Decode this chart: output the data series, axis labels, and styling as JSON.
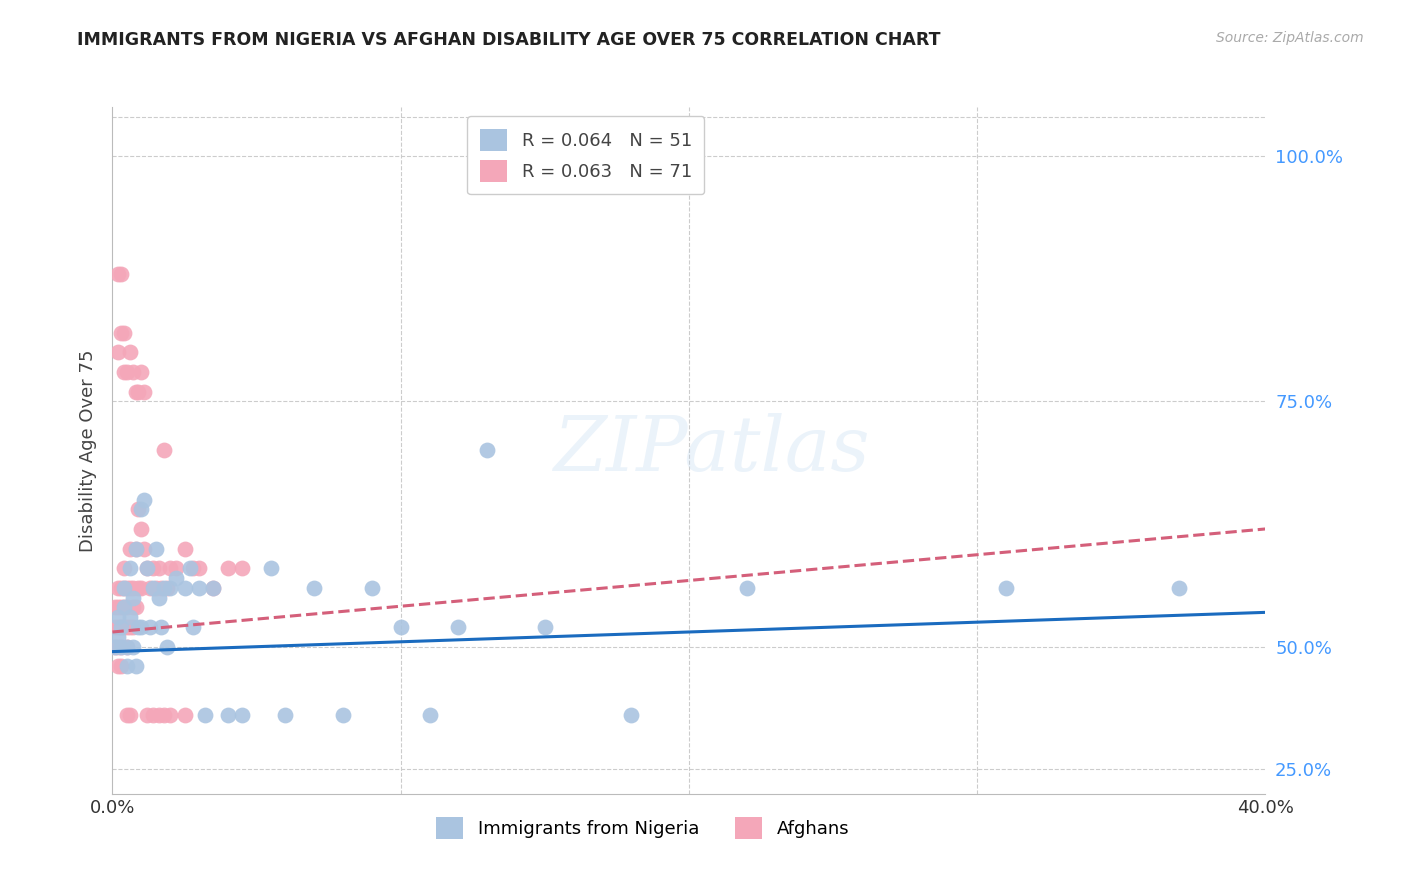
{
  "title": "IMMIGRANTS FROM NIGERIA VS AFGHAN DISABILITY AGE OVER 75 CORRELATION CHART",
  "source": "Source: ZipAtlas.com",
  "ylabel": "Disability Age Over 75",
  "nigeria_R": "0.064",
  "nigeria_N": "51",
  "afghan_R": "0.063",
  "afghan_N": "71",
  "nigeria_color": "#aac4e0",
  "afghan_color": "#f4a7b9",
  "nigeria_line_color": "#1a6bbf",
  "afghan_line_color": "#d45f7a",
  "legend_label_nigeria": "Immigrants from Nigeria",
  "legend_label_afghan": "Afghans",
  "watermark": "ZIPatlas",
  "background_color": "#ffffff",
  "grid_color": "#cccccc",
  "xlim": [
    0.0,
    0.4
  ],
  "ylim": [
    0.35,
    1.05
  ],
  "nigeria_x": [
    0.001,
    0.002,
    0.002,
    0.003,
    0.003,
    0.004,
    0.004,
    0.005,
    0.005,
    0.006,
    0.006,
    0.007,
    0.007,
    0.008,
    0.008,
    0.009,
    0.01,
    0.01,
    0.011,
    0.012,
    0.013,
    0.014,
    0.015,
    0.016,
    0.017,
    0.018,
    0.019,
    0.02,
    0.022,
    0.025,
    0.027,
    0.028,
    0.03,
    0.032,
    0.035,
    0.04,
    0.045,
    0.055,
    0.06,
    0.07,
    0.08,
    0.09,
    0.1,
    0.11,
    0.12,
    0.13,
    0.15,
    0.18,
    0.22,
    0.31,
    0.37
  ],
  "nigeria_y": [
    0.5,
    0.51,
    0.53,
    0.52,
    0.5,
    0.54,
    0.56,
    0.5,
    0.48,
    0.58,
    0.53,
    0.55,
    0.5,
    0.6,
    0.48,
    0.52,
    0.64,
    0.52,
    0.65,
    0.58,
    0.52,
    0.56,
    0.6,
    0.55,
    0.52,
    0.56,
    0.5,
    0.56,
    0.57,
    0.56,
    0.58,
    0.52,
    0.56,
    0.43,
    0.56,
    0.43,
    0.43,
    0.58,
    0.43,
    0.56,
    0.43,
    0.56,
    0.52,
    0.43,
    0.52,
    0.7,
    0.52,
    0.43,
    0.56,
    0.56,
    0.56
  ],
  "afghan_x": [
    0.001,
    0.001,
    0.001,
    0.002,
    0.002,
    0.002,
    0.002,
    0.002,
    0.003,
    0.003,
    0.003,
    0.003,
    0.003,
    0.004,
    0.004,
    0.004,
    0.004,
    0.005,
    0.005,
    0.005,
    0.005,
    0.006,
    0.006,
    0.006,
    0.007,
    0.007,
    0.007,
    0.008,
    0.008,
    0.009,
    0.009,
    0.01,
    0.01,
    0.011,
    0.012,
    0.013,
    0.014,
    0.015,
    0.016,
    0.017,
    0.018,
    0.019,
    0.02,
    0.022,
    0.025,
    0.028,
    0.03,
    0.035,
    0.04,
    0.045,
    0.002,
    0.003,
    0.004,
    0.005,
    0.006,
    0.007,
    0.008,
    0.009,
    0.01,
    0.011,
    0.012,
    0.014,
    0.016,
    0.018,
    0.02,
    0.025,
    0.002,
    0.003,
    0.004,
    0.005,
    0.006
  ],
  "afghan_y": [
    0.5,
    0.52,
    0.54,
    0.5,
    0.52,
    0.54,
    0.56,
    0.48,
    0.52,
    0.54,
    0.56,
    0.5,
    0.48,
    0.52,
    0.56,
    0.54,
    0.58,
    0.52,
    0.54,
    0.5,
    0.56,
    0.52,
    0.56,
    0.6,
    0.54,
    0.56,
    0.52,
    0.6,
    0.54,
    0.64,
    0.56,
    0.62,
    0.56,
    0.6,
    0.58,
    0.56,
    0.58,
    0.56,
    0.58,
    0.56,
    0.7,
    0.56,
    0.58,
    0.58,
    0.6,
    0.58,
    0.58,
    0.56,
    0.58,
    0.58,
    0.8,
    0.82,
    0.78,
    0.78,
    0.8,
    0.78,
    0.76,
    0.76,
    0.78,
    0.76,
    0.43,
    0.43,
    0.43,
    0.43,
    0.43,
    0.43,
    0.88,
    0.88,
    0.82,
    0.43,
    0.43
  ]
}
